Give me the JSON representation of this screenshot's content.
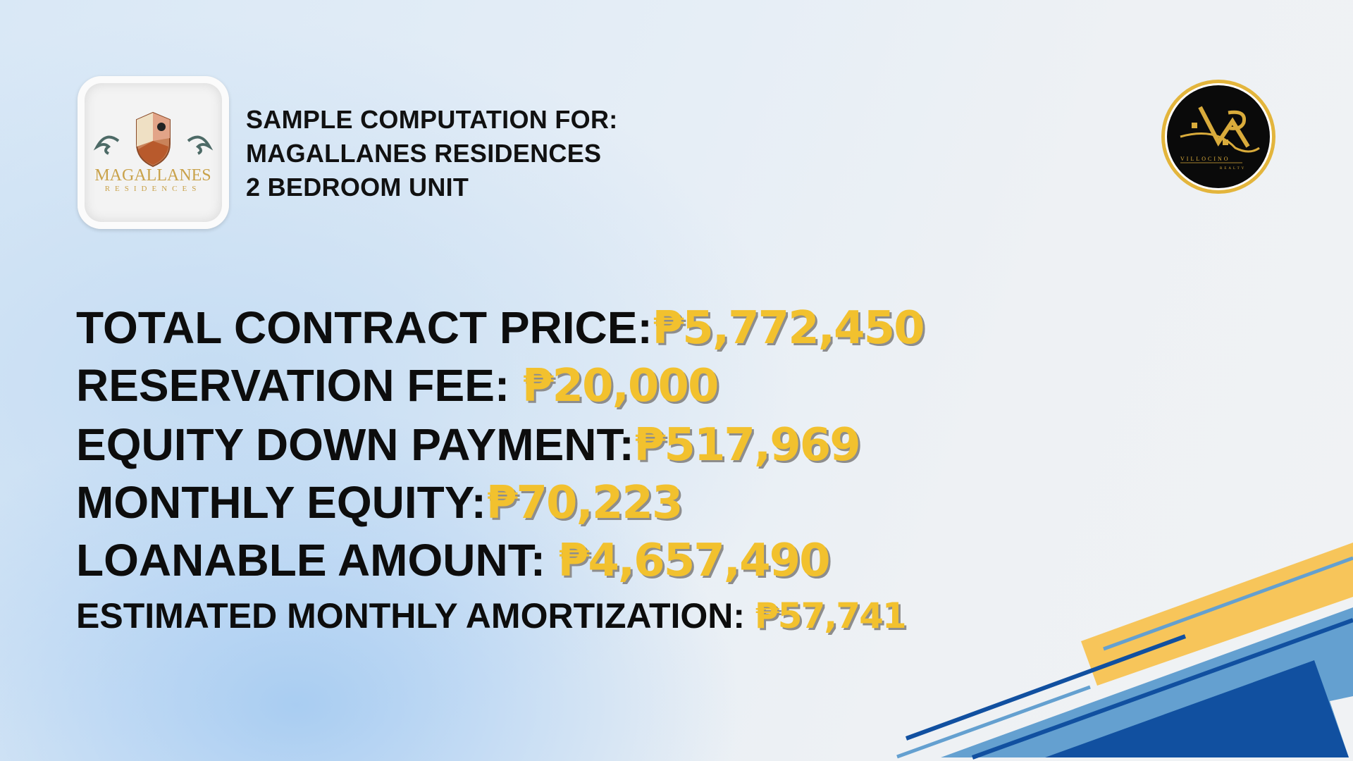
{
  "header": {
    "line1": "SAMPLE COMPUTATION FOR:",
    "line2": "MAGALLANES RESIDENCES",
    "line3": "2 BEDROOM UNIT"
  },
  "logos": {
    "project": {
      "name": "MAGALLANES",
      "sub": "RESIDENCES"
    },
    "brokerage": {
      "name": "VILLOCINO",
      "sub": "REALTY"
    }
  },
  "computation": [
    {
      "label": "TOTAL CONTRACT PRICE:",
      "value": "₱5,772,450"
    },
    {
      "label": "RESERVATION FEE:",
      "value": "₱20,000"
    },
    {
      "label": "EQUITY DOWN PAYMENT:",
      "value": "₱517,969"
    },
    {
      "label": "MONTHLY EQUITY:",
      "value": "₱70,223"
    },
    {
      "label": "LOANABLE AMOUNT:",
      "value": "₱4,657,490"
    },
    {
      "label": "ESTIMATED MONTHLY AMORTIZATION:",
      "value": "₱57,741"
    }
  ],
  "colors": {
    "value": "#f2c12e",
    "label": "#0d0d0d",
    "accent_yellow": "#f7c55a",
    "accent_blue": "#64a0d0",
    "accent_dark_blue": "#1150a0"
  }
}
